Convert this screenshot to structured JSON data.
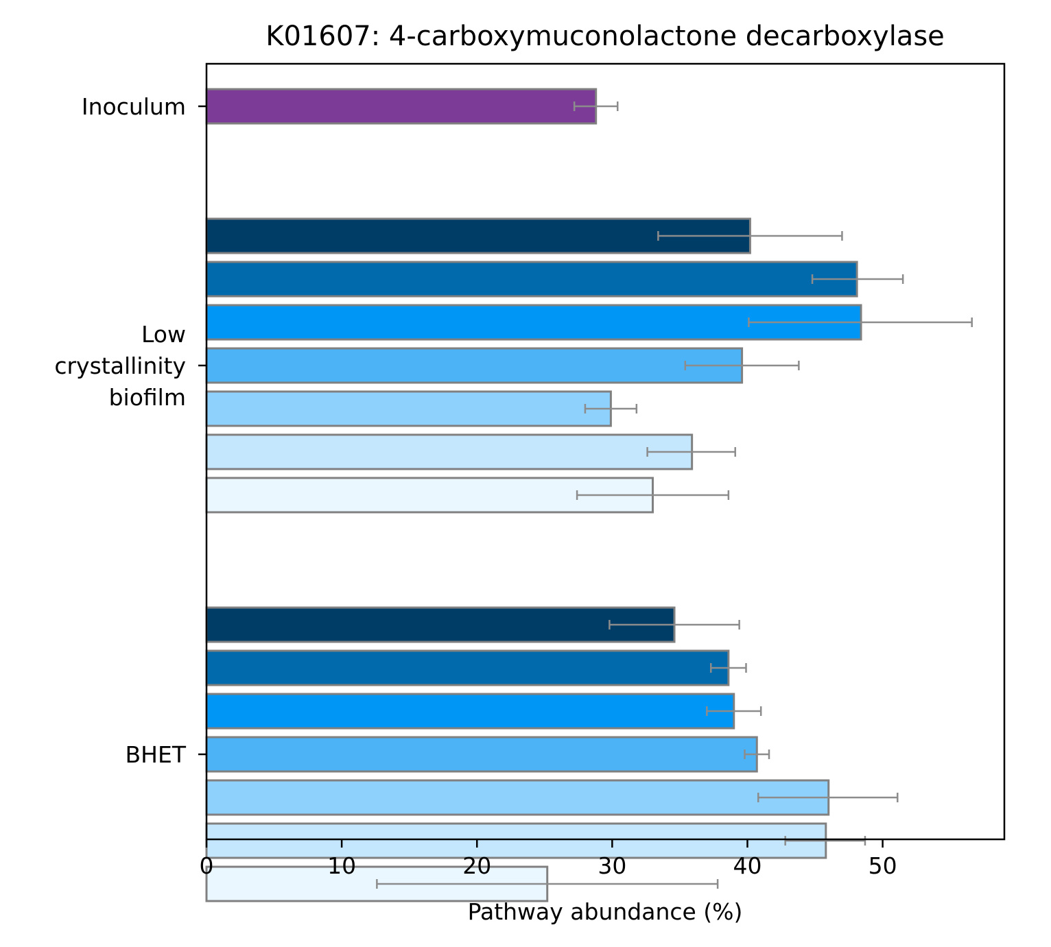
{
  "chart_data": {
    "type": "bar",
    "orientation": "horizontal",
    "title": "K01607: 4-carboxymuconolactone decarboxylase",
    "xlabel": "Pathway abundance (%)",
    "ylabel": "",
    "xlim": [
      0,
      59
    ],
    "xticks": [
      0,
      10,
      20,
      30,
      40,
      50
    ],
    "grid": false,
    "groups": [
      {
        "label": "Inoculum",
        "label_lines": [
          "Inoculum"
        ],
        "bars": [
          {
            "value": 28.8,
            "err_low": 27.2,
            "err_high": 30.4,
            "color": "#7b3b96"
          }
        ]
      },
      {
        "label": "Low crystallinity biofilm",
        "label_lines": [
          "Low",
          "crystallinity",
          "biofilm"
        ],
        "bars": [
          {
            "value": 40.2,
            "err_low": 33.4,
            "err_high": 47.0,
            "color": "#003d66"
          },
          {
            "value": 48.1,
            "err_low": 44.8,
            "err_high": 51.5,
            "color": "#006aad"
          },
          {
            "value": 48.4,
            "err_low": 40.1,
            "err_high": 56.6,
            "color": "#0096f5"
          },
          {
            "value": 39.6,
            "err_low": 35.4,
            "err_high": 43.8,
            "color": "#4db3f7"
          },
          {
            "value": 29.9,
            "err_low": 28.0,
            "err_high": 31.8,
            "color": "#8ed1fd"
          },
          {
            "value": 35.9,
            "err_low": 32.6,
            "err_high": 39.1,
            "color": "#c5e7fe"
          },
          {
            "value": 33.0,
            "err_low": 27.4,
            "err_high": 38.6,
            "color": "#ebf7ff"
          }
        ]
      },
      {
        "label": "BHET",
        "label_lines": [
          "BHET"
        ],
        "bars": [
          {
            "value": 34.6,
            "err_low": 29.8,
            "err_high": 39.4,
            "color": "#003d66"
          },
          {
            "value": 38.6,
            "err_low": 37.3,
            "err_high": 39.9,
            "color": "#006aad"
          },
          {
            "value": 39.0,
            "err_low": 37.0,
            "err_high": 41.0,
            "color": "#0096f5"
          },
          {
            "value": 40.7,
            "err_low": 39.8,
            "err_high": 41.6,
            "color": "#4db3f7"
          },
          {
            "value": 46.0,
            "err_low": 40.8,
            "err_high": 51.1,
            "color": "#8ed1fd"
          },
          {
            "value": 45.8,
            "err_low": 42.8,
            "err_high": 48.7,
            "color": "#c5e7fe"
          },
          {
            "value": 25.2,
            "err_low": 12.6,
            "err_high": 37.8,
            "color": "#ebf7ff"
          }
        ]
      }
    ],
    "bar_edge_color": "#808080",
    "errorbar_color": "#8c8c8c"
  }
}
